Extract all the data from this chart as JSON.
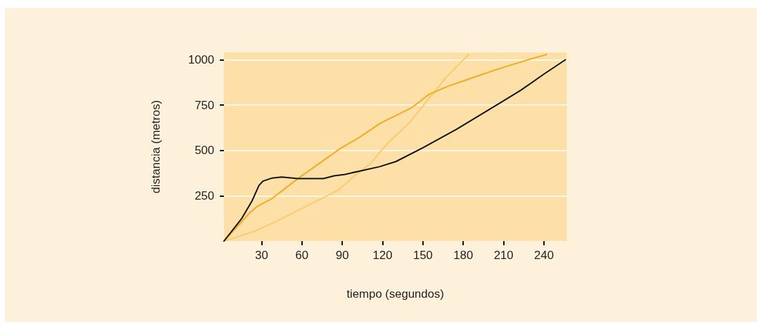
{
  "chart_data": {
    "type": "line",
    "xlabel": "tiempo (segundos)",
    "ylabel": "distancia (metros)",
    "xlim": [
      2,
      257
    ],
    "xticks": [
      30,
      60,
      90,
      120,
      150,
      180,
      210,
      240
    ],
    "ylim": [
      0,
      1040
    ],
    "yticks": [
      250,
      500,
      750,
      1000
    ],
    "grid": "y",
    "marker": "none",
    "line_style": "solid",
    "series": [
      {
        "color": "#fcc96b",
        "x": [
          2,
          24,
          41,
          58,
          75,
          87,
          100,
          111,
          118,
          124,
          141,
          154,
          168,
          184
        ],
        "values": [
          0,
          52,
          109,
          173,
          236,
          281,
          365,
          426,
          490,
          541,
          661,
          782,
          909,
          1029
        ]
      },
      {
        "color": "#f5a91e",
        "x": [
          2,
          21,
          27,
          38,
          58,
          89,
          103,
          118,
          142,
          154,
          168,
          185,
          206,
          230,
          242
        ],
        "values": [
          0,
          154,
          192,
          236,
          350,
          513,
          573,
          649,
          737,
          807,
          852,
          896,
          949,
          1004,
          1029
        ]
      },
      {
        "color": "#111111",
        "x": [
          2,
          15,
          23,
          28,
          31,
          38,
          45,
          57,
          76,
          84,
          92,
          104,
          118,
          130,
          150,
          175,
          206,
          223,
          240,
          256
        ],
        "values": [
          0,
          122,
          223,
          306,
          331,
          348,
          353,
          345,
          345,
          360,
          368,
          388,
          411,
          439,
          515,
          617,
          756,
          833,
          921,
          1000
        ]
      }
    ]
  }
}
